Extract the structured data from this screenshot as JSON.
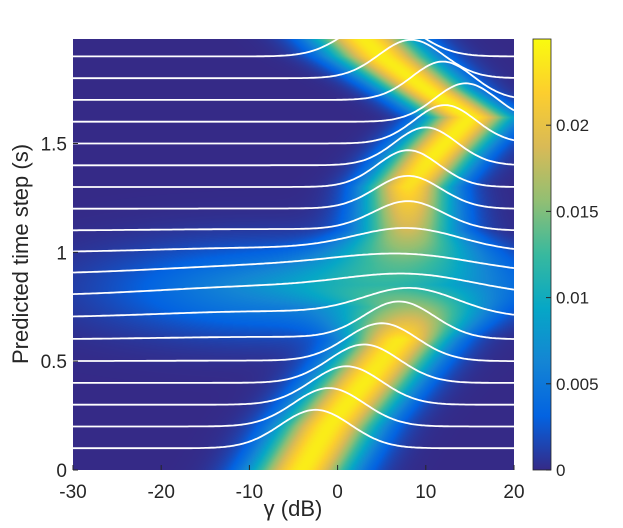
{
  "chart_data": {
    "type": "heatmap",
    "title": "",
    "xlabel": "γ (dB)",
    "ylabel": "Predicted time step (s)",
    "xlim": [
      -30,
      20
    ],
    "ylim": [
      0,
      1.98
    ],
    "x_ticks": [
      -30,
      -20,
      -10,
      0,
      10,
      20
    ],
    "x_tick_labels": [
      "-30",
      "-20",
      "-10",
      "0",
      "10",
      "20"
    ],
    "y_ticks": [
      0,
      0.5,
      1,
      1.5
    ],
    "y_tick_labels": [
      "0",
      "0.5",
      "1",
      "1.5"
    ],
    "colorbar": {
      "range": [
        0,
        0.025
      ],
      "ticks": [
        0,
        0.005,
        0.01,
        0.015,
        0.02
      ],
      "tick_labels": [
        "0",
        "0.005",
        "0.01",
        "0.015",
        "0.02"
      ],
      "colormap": "parula"
    },
    "ridge": {
      "time": [
        0.0,
        0.2,
        0.4,
        0.6,
        0.75,
        0.85,
        0.95,
        1.1,
        1.3,
        1.45,
        1.62,
        1.75,
        1.9,
        1.98
      ],
      "gamma_mean": [
        -4,
        -1,
        3,
        7,
        9,
        8,
        8,
        8,
        8,
        11,
        15,
        10,
        5,
        3
      ],
      "gamma_width": [
        4,
        4,
        4,
        4,
        6,
        9,
        7,
        4,
        3.5,
        3.5,
        3.5,
        3.5,
        4,
        4
      ],
      "peak_density": [
        0.024,
        0.024,
        0.024,
        0.023,
        0.014,
        0.009,
        0.012,
        0.018,
        0.023,
        0.024,
        0.024,
        0.024,
        0.024,
        0.024
      ]
    },
    "secondary_mode": {
      "gamma_center": -8,
      "time_center": 0.83,
      "gamma_width": 12,
      "time_width": 0.14,
      "peak_density": 0.006
    },
    "slice_times": [
      0.1,
      0.2,
      0.3,
      0.4,
      0.5,
      0.6,
      0.7,
      0.8,
      0.9,
      1.0,
      1.1,
      1.2,
      1.3,
      1.4,
      1.5,
      1.6,
      1.7,
      1.8,
      1.9
    ],
    "slice_curve_color": "#ffffff",
    "grid": false,
    "legend": "none"
  }
}
